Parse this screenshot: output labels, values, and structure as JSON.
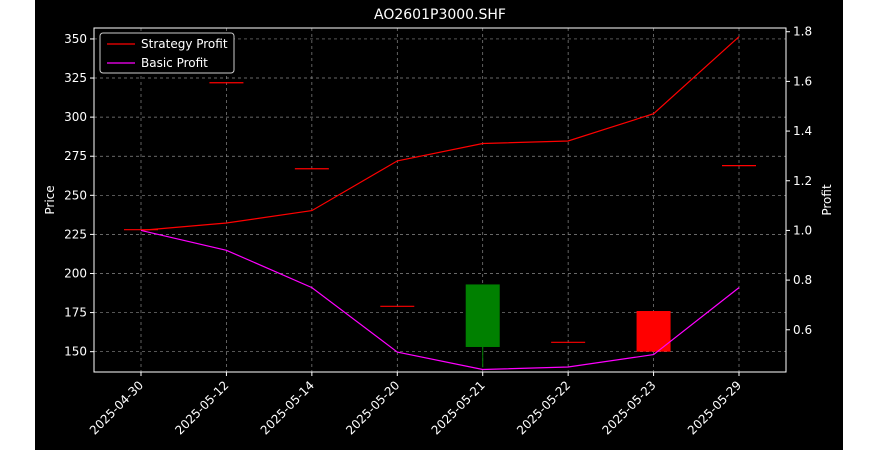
{
  "chart_data": {
    "type": "line",
    "title": "AO2601P3000.SHF",
    "ylabel_left": "Price",
    "ylabel_right": "Profit",
    "categories": [
      "2025-04-30",
      "2025-05-12",
      "2025-05-14",
      "2025-05-20",
      "2025-05-21",
      "2025-05-22",
      "2025-05-23",
      "2025-05-29"
    ],
    "left_axis": {
      "ylim": [
        137,
        357
      ],
      "ticks": [
        150,
        175,
        200,
        225,
        250,
        275,
        300,
        325,
        350
      ]
    },
    "right_axis": {
      "ylim": [
        0.43,
        1.815
      ],
      "ticks": [
        0.6,
        0.8,
        1.0,
        1.2,
        1.4,
        1.6,
        1.8
      ]
    },
    "grid": true,
    "legend_position": "top-left",
    "candles": [
      {
        "date": "2025-04-30",
        "open": 228,
        "close": 228,
        "high": 228,
        "low": 228
      },
      {
        "date": "2025-05-12",
        "open": 322,
        "close": 322,
        "high": 322,
        "low": 322
      },
      {
        "date": "2025-05-14",
        "open": 267,
        "close": 267,
        "high": 267,
        "low": 267
      },
      {
        "date": "2025-05-20",
        "open": 179,
        "close": 179,
        "high": 179,
        "low": 179
      },
      {
        "date": "2025-05-21",
        "open": 153,
        "close": 193,
        "high": 193,
        "low": 140
      },
      {
        "date": "2025-05-22",
        "open": 156,
        "close": 156,
        "high": 156,
        "low": 156
      },
      {
        "date": "2025-05-23",
        "open": 176,
        "close": 150,
        "high": 176,
        "low": 150
      },
      {
        "date": "2025-05-29",
        "open": 269,
        "close": 269,
        "high": 269,
        "low": 269
      }
    ],
    "series": [
      {
        "name": "Strategy Profit",
        "axis": "right",
        "color": "#ff0000",
        "values": [
          1.0,
          1.03,
          1.08,
          1.28,
          1.35,
          1.36,
          1.47,
          1.78
        ]
      },
      {
        "name": "Basic Profit",
        "axis": "right",
        "color": "#ff00ff",
        "values": [
          1.0,
          0.92,
          0.77,
          0.51,
          0.44,
          0.45,
          0.5,
          0.77
        ]
      }
    ],
    "up_color": "#008000",
    "down_color": "#ff0000"
  }
}
